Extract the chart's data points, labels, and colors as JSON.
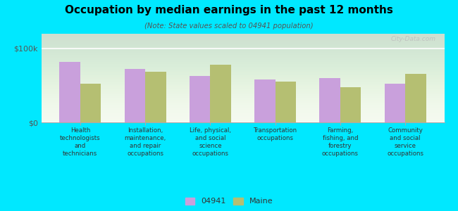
{
  "title": "Occupation by median earnings in the past 12 months",
  "subtitle": "(Note: State values scaled to 04941 population)",
  "background_outer": "#00e8ff",
  "background_inner_top": "#e8f0d8",
  "background_inner_bottom": "#f5faf0",
  "categories": [
    "Health\ntechnologists\nand\ntechnicians",
    "Installation,\nmaintenance,\nand repair\noccupations",
    "Life, physical,\nand social\nscience\noccupations",
    "Transportation\noccupations",
    "Farming,\nfishing, and\nforestry\noccupations",
    "Community\nand social\nservice\noccupations"
  ],
  "values_04941": [
    82000,
    72000,
    63000,
    58000,
    60000,
    52000
  ],
  "values_maine": [
    52000,
    69000,
    78000,
    55000,
    48000,
    66000
  ],
  "color_04941": "#c9a0dc",
  "color_maine": "#b5bf72",
  "ylim": [
    0,
    120000
  ],
  "yticks": [
    0,
    100000
  ],
  "ytick_labels": [
    "$0",
    "$100k"
  ],
  "legend_04941": "04941",
  "legend_maine": "Maine",
  "watermark": "City-Data.com"
}
